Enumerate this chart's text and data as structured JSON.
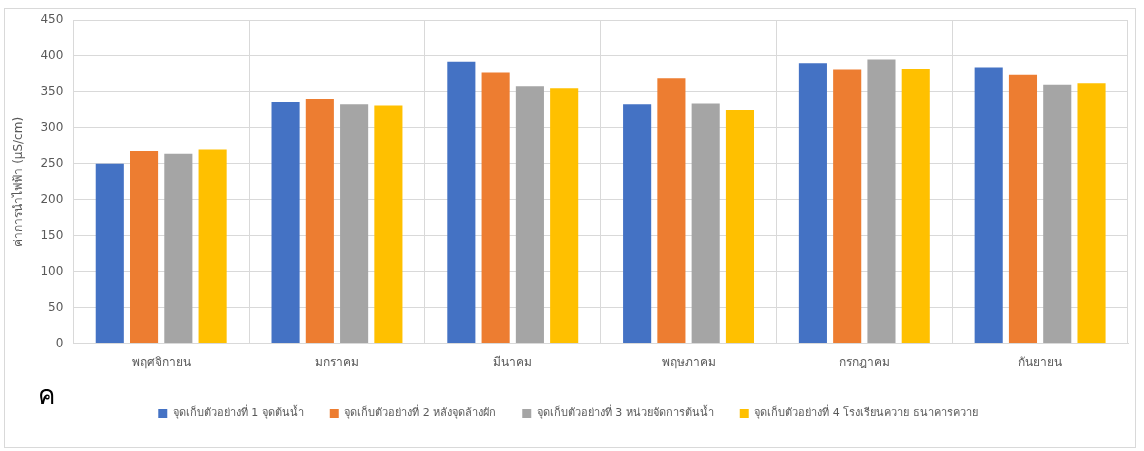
{
  "chart_data": {
    "type": "bar",
    "ylabel": "ค่าการนำไฟฟ้า (µS/cm)",
    "categories": [
      "พฤศจิกายน",
      "มกราคม",
      "มีนาคม",
      "พฤษภาคม",
      "กรกฎาคม",
      "กันยายน"
    ],
    "series": [
      {
        "name": "จุดเก็บตัวอย่างที่ 1 จุดต้นน้ำ",
        "color": "#4472c4",
        "values": [
          250,
          336,
          392,
          333,
          390,
          384
        ]
      },
      {
        "name": "จุดเก็บตัวอย่างที่ 2 หลังจุดล้างผัก",
        "color": "#ed7d31",
        "values": [
          268,
          340,
          377,
          369,
          381,
          374
        ]
      },
      {
        "name": "จุดเก็บตัวอย่างที่ 3 หน่วยจัดการต้นน้ำ",
        "color": "#a5a5a5",
        "values": [
          264,
          333,
          358,
          334,
          395,
          360
        ]
      },
      {
        "name": "จุดเก็บตัวอย่างที่ 4 โรงเรียนควาย ธนาคารควาย",
        "color": "#ffc000",
        "values": [
          270,
          331,
          355,
          325,
          382,
          362
        ]
      }
    ],
    "ylim": [
      0,
      450
    ],
    "yticks": [
      0,
      50,
      100,
      150,
      200,
      250,
      300,
      350,
      400,
      450
    ],
    "grid": true,
    "legend": "bottom",
    "annotations": [
      "ค"
    ]
  }
}
